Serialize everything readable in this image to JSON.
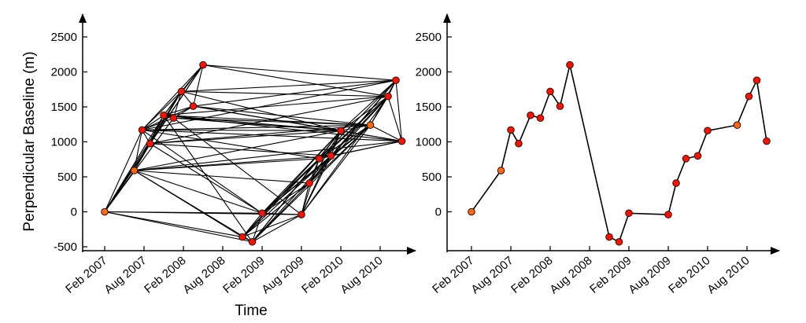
{
  "chart_data": [
    {
      "type": "scatter",
      "variant": "baseline-network",
      "xlabel": "Time",
      "ylabel": "Perpendicular Baseline (m)",
      "ylim": [
        -500,
        2500
      ],
      "yticks": [
        -500,
        0,
        500,
        1000,
        1500,
        2000,
        2500
      ],
      "xticks": [
        "Feb 2007",
        "Aug 2007",
        "Feb 2008",
        "Aug 2008",
        "Feb 2009",
        "Aug 2009",
        "Feb 2010",
        "Aug 2010"
      ],
      "xlim": [
        -0.4,
        7.75
      ],
      "grid": false,
      "colors": {
        "point": "#e8180c",
        "reference_point": "#f26a1b",
        "edge": "#000000"
      },
      "points": [
        {
          "t": 0.0,
          "b": 0,
          "ref": true
        },
        {
          "t": 0.75,
          "b": 590,
          "ref": true
        },
        {
          "t": 0.95,
          "b": 1170
        },
        {
          "t": 1.15,
          "b": 975
        },
        {
          "t": 1.5,
          "b": 1380
        },
        {
          "t": 1.75,
          "b": 1340
        },
        {
          "t": 1.95,
          "b": 1720
        },
        {
          "t": 2.25,
          "b": 1510
        },
        {
          "t": 2.5,
          "b": 2100
        },
        {
          "t": 3.5,
          "b": -360
        },
        {
          "t": 3.75,
          "b": -430
        },
        {
          "t": 4.0,
          "b": -20
        },
        {
          "t": 5.0,
          "b": -40
        },
        {
          "t": 5.2,
          "b": 410
        },
        {
          "t": 5.45,
          "b": 760
        },
        {
          "t": 5.75,
          "b": 800
        },
        {
          "t": 6.0,
          "b": 1160
        },
        {
          "t": 6.75,
          "b": 1240,
          "ref": true
        },
        {
          "t": 7.2,
          "b": 1650
        },
        {
          "t": 7.4,
          "b": 1880
        },
        {
          "t": 7.55,
          "b": 1010
        }
      ],
      "edges": [
        [
          0,
          1
        ],
        [
          0,
          2
        ],
        [
          0,
          3
        ],
        [
          0,
          4
        ],
        [
          0,
          5
        ],
        [
          0,
          6
        ],
        [
          0,
          8
        ],
        [
          0,
          9
        ],
        [
          0,
          10
        ],
        [
          0,
          11
        ],
        [
          0,
          12
        ],
        [
          1,
          2
        ],
        [
          1,
          3
        ],
        [
          1,
          4
        ],
        [
          1,
          6
        ],
        [
          1,
          9
        ],
        [
          1,
          10
        ],
        [
          1,
          11
        ],
        [
          1,
          13
        ],
        [
          1,
          14
        ],
        [
          1,
          15
        ],
        [
          1,
          16
        ],
        [
          1,
          20
        ],
        [
          2,
          3
        ],
        [
          2,
          4
        ],
        [
          2,
          5
        ],
        [
          2,
          6
        ],
        [
          2,
          7
        ],
        [
          2,
          8
        ],
        [
          2,
          11
        ],
        [
          2,
          14
        ],
        [
          2,
          16
        ],
        [
          2,
          17
        ],
        [
          2,
          19
        ],
        [
          2,
          20
        ],
        [
          3,
          4
        ],
        [
          3,
          6
        ],
        [
          3,
          8
        ],
        [
          3,
          11
        ],
        [
          3,
          15
        ],
        [
          3,
          16
        ],
        [
          3,
          17
        ],
        [
          3,
          18
        ],
        [
          4,
          5
        ],
        [
          4,
          6
        ],
        [
          4,
          7
        ],
        [
          4,
          8
        ],
        [
          4,
          10
        ],
        [
          4,
          16
        ],
        [
          4,
          17
        ],
        [
          4,
          18
        ],
        [
          4,
          20
        ],
        [
          5,
          6
        ],
        [
          5,
          7
        ],
        [
          5,
          12
        ],
        [
          5,
          16
        ],
        [
          5,
          17
        ],
        [
          6,
          7
        ],
        [
          6,
          8
        ],
        [
          6,
          16
        ],
        [
          6,
          18
        ],
        [
          6,
          19
        ],
        [
          7,
          8
        ],
        [
          7,
          16
        ],
        [
          7,
          17
        ],
        [
          7,
          19
        ],
        [
          7,
          20
        ],
        [
          8,
          18
        ],
        [
          8,
          19
        ],
        [
          9,
          10
        ],
        [
          9,
          11
        ],
        [
          9,
          12
        ],
        [
          9,
          13
        ],
        [
          9,
          14
        ],
        [
          9,
          15
        ],
        [
          9,
          16
        ],
        [
          10,
          11
        ],
        [
          10,
          12
        ],
        [
          10,
          13
        ],
        [
          10,
          14
        ],
        [
          10,
          15
        ],
        [
          10,
          16
        ],
        [
          10,
          17
        ],
        [
          11,
          12
        ],
        [
          11,
          13
        ],
        [
          11,
          14
        ],
        [
          11,
          15
        ],
        [
          11,
          16
        ],
        [
          11,
          17
        ],
        [
          11,
          18
        ],
        [
          12,
          13
        ],
        [
          12,
          14
        ],
        [
          12,
          15
        ],
        [
          12,
          16
        ],
        [
          12,
          17
        ],
        [
          12,
          18
        ],
        [
          13,
          14
        ],
        [
          13,
          15
        ],
        [
          13,
          16
        ],
        [
          13,
          17
        ],
        [
          13,
          18
        ],
        [
          13,
          19
        ],
        [
          14,
          15
        ],
        [
          14,
          16
        ],
        [
          14,
          17
        ],
        [
          14,
          18
        ],
        [
          14,
          19
        ],
        [
          14,
          20
        ],
        [
          15,
          16
        ],
        [
          15,
          17
        ],
        [
          15,
          18
        ],
        [
          15,
          19
        ],
        [
          15,
          20
        ],
        [
          16,
          17
        ],
        [
          16,
          18
        ],
        [
          16,
          19
        ],
        [
          16,
          20
        ],
        [
          17,
          18
        ],
        [
          17,
          19
        ],
        [
          17,
          20
        ],
        [
          18,
          19
        ],
        [
          18,
          20
        ],
        [
          19,
          20
        ]
      ]
    },
    {
      "type": "line",
      "xlabel": "",
      "ylabel": "",
      "ylim": [
        -500,
        2500
      ],
      "yticks": [
        0,
        500,
        1000,
        1500,
        2000,
        2500
      ],
      "xticks": [
        "Feb 2007",
        "Aug 2007",
        "Feb 2008",
        "Aug 2008",
        "Feb 2009",
        "Aug 2009",
        "Feb 2010",
        "Aug 2010"
      ],
      "xlim": [
        -0.1,
        7.75
      ],
      "grid": false,
      "colors": {
        "point": "#e8180c",
        "reference_point": "#f26a1b",
        "line": "#000000"
      },
      "points": [
        {
          "t": 0.0,
          "b": 0,
          "ref": true
        },
        {
          "t": 0.75,
          "b": 590,
          "ref": true
        },
        {
          "t": 1.0,
          "b": 1170
        },
        {
          "t": 1.2,
          "b": 975
        },
        {
          "t": 1.5,
          "b": 1380
        },
        {
          "t": 1.75,
          "b": 1340
        },
        {
          "t": 2.0,
          "b": 1720
        },
        {
          "t": 2.25,
          "b": 1510
        },
        {
          "t": 2.5,
          "b": 2100
        },
        {
          "t": 3.5,
          "b": -360
        },
        {
          "t": 3.75,
          "b": -430
        },
        {
          "t": 4.0,
          "b": -20
        },
        {
          "t": 5.0,
          "b": -40
        },
        {
          "t": 5.2,
          "b": 410
        },
        {
          "t": 5.45,
          "b": 760
        },
        {
          "t": 5.75,
          "b": 800
        },
        {
          "t": 6.0,
          "b": 1160
        },
        {
          "t": 6.75,
          "b": 1240,
          "ref": true
        },
        {
          "t": 7.05,
          "b": 1650
        },
        {
          "t": 7.25,
          "b": 1880
        },
        {
          "t": 7.5,
          "b": 1010
        }
      ]
    }
  ]
}
